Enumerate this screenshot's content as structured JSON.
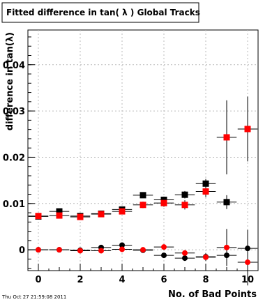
{
  "chart_data": {
    "type": "scatter",
    "title": "Fitted difference in tan( λ )  Global Tracks",
    "xlabel": "No. of Bad Points",
    "ylabel": "difference in tan(λ)",
    "timestamp": "Thu Oct 27 21:59:08 2011",
    "xlim": [
      -0.5,
      10.5
    ],
    "ylim": [
      -0.0045,
      0.0475
    ],
    "x_ticks": [
      0,
      2,
      4,
      6,
      8,
      10
    ],
    "y_ticks": [
      0,
      0.01,
      0.02,
      0.03,
      0.04
    ],
    "y_tick_labels": [
      "0",
      "0.01",
      "0.02",
      "0.03",
      "0.04"
    ],
    "grid": true,
    "series": [
      {
        "marker": "square",
        "color": "#000000",
        "x": [
          0,
          1,
          2,
          3,
          4,
          5,
          6,
          7,
          8,
          9
        ],
        "y": [
          0.0072,
          0.0083,
          0.0073,
          0.0078,
          0.0087,
          0.0118,
          0.0108,
          0.0119,
          0.0143,
          0.0103
        ],
        "yerr": [
          0.0004,
          0.0004,
          0.0004,
          0.0004,
          0.0005,
          0.0006,
          0.0007,
          0.0008,
          0.001,
          0.0015
        ]
      },
      {
        "marker": "square",
        "color": "#ff0000",
        "x": [
          0,
          1,
          2,
          3,
          4,
          5,
          6,
          7,
          8,
          9,
          10
        ],
        "y": [
          0.0073,
          0.0074,
          0.0071,
          0.0077,
          0.0083,
          0.0097,
          0.0101,
          0.0097,
          0.0126,
          0.0243,
          0.0261
        ],
        "yerr": [
          0.0004,
          0.0004,
          0.0004,
          0.0005,
          0.0006,
          0.0007,
          0.0008,
          0.001,
          0.0012,
          0.008,
          0.007
        ]
      },
      {
        "marker": "circle",
        "color": "#000000",
        "x": [
          0,
          1,
          2,
          3,
          4,
          5,
          6,
          7,
          8,
          9,
          10
        ],
        "y": [
          0.0,
          0.0,
          -0.0001,
          0.0005,
          0.001,
          -0.0001,
          -0.0012,
          -0.0018,
          -0.0015,
          -0.0012,
          0.0003
        ],
        "yerr": [
          0.0002,
          0.0002,
          0.0002,
          0.0003,
          0.0003,
          0.0004,
          0.0005,
          0.0006,
          0.0008,
          0.0015,
          0.004
        ]
      },
      {
        "marker": "circle",
        "color": "#ff0000",
        "x": [
          0,
          1,
          2,
          3,
          4,
          5,
          6,
          7,
          8,
          9,
          10
        ],
        "y": [
          0.0,
          0.0,
          -0.0002,
          -0.0002,
          0.0001,
          0.0,
          0.0006,
          -0.0007,
          -0.0016,
          0.0005,
          -0.0027
        ],
        "yerr": [
          0.0002,
          0.0002,
          0.0002,
          0.0002,
          0.0003,
          0.0004,
          0.0005,
          0.0006,
          0.0008,
          0.004,
          0.005
        ]
      }
    ]
  }
}
